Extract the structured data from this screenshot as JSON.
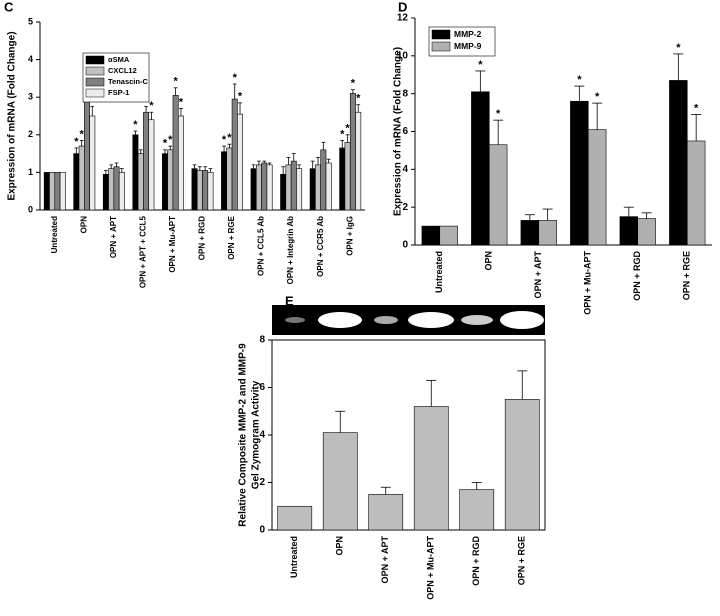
{
  "chart_data": [
    {
      "type": "bar",
      "panel_label": "C",
      "ylabel": "Expression of mRNA (Fold Change)",
      "categories": [
        "Untreated",
        "OPN",
        "OPN + APT",
        "OPN + APT + CCL5",
        "OPN + Mu-APT",
        "OPN + RGD",
        "OPN + RGE",
        "OPN + CCL5 Ab",
        "OPN + Integrin Ab",
        "OPN + CCR5 Ab",
        "OPN + IgG"
      ],
      "series": [
        {
          "name": "αSMA",
          "color": "#000000",
          "values": [
            1,
            1.5,
            0.95,
            2.0,
            1.5,
            1.1,
            1.55,
            1.1,
            0.95,
            1.1,
            1.65
          ],
          "errors": [
            0,
            0.15,
            0.1,
            0.1,
            0.1,
            0.1,
            0.15,
            0.1,
            0.2,
            0.2,
            0.2
          ]
        },
        {
          "name": "CXCL12",
          "color": "#c0c0c0",
          "values": [
            1,
            1.7,
            1.1,
            1.5,
            1.6,
            1.05,
            1.65,
            1.2,
            1.2,
            1.2,
            1.8
          ],
          "errors": [
            0,
            0.15,
            0.1,
            0.1,
            0.1,
            0.1,
            0.1,
            0.1,
            0.2,
            0.2,
            0.2
          ]
        },
        {
          "name": "Tenascin-C",
          "color": "#808080",
          "values": [
            1,
            3.0,
            1.15,
            2.6,
            3.05,
            1.05,
            2.95,
            1.25,
            1.3,
            1.6,
            3.1
          ],
          "errors": [
            0,
            0.3,
            0.1,
            0.15,
            0.2,
            0.1,
            0.4,
            0.05,
            0.2,
            0.2,
            0.1
          ]
        },
        {
          "name": "FSP-1",
          "color": "#ececec",
          "values": [
            1,
            2.5,
            1.0,
            2.4,
            2.5,
            1.0,
            2.55,
            1.2,
            1.1,
            1.25,
            2.6
          ],
          "errors": [
            0,
            0.25,
            0.1,
            0.2,
            0.2,
            0.1,
            0.3,
            0.05,
            0.1,
            0.1,
            0.2
          ]
        }
      ],
      "ylim": [
        0,
        5
      ],
      "yticks": [
        0,
        1,
        2,
        3,
        4,
        5
      ],
      "legend": "upper left",
      "annotations": [
        {
          "text": "*",
          "category": "OPN",
          "series": "αSMA"
        },
        {
          "text": "*",
          "category": "OPN",
          "series": "CXCL12"
        },
        {
          "text": "*",
          "category": "OPN",
          "series": "Tenascin-C"
        },
        {
          "text": "*",
          "category": "OPN",
          "series": "FSP-1"
        },
        {
          "text": "*",
          "category": "OPN + APT + CCL5",
          "series": "αSMA"
        },
        {
          "text": "*",
          "category": "OPN + APT + CCL5",
          "series": "Tenascin-C"
        },
        {
          "text": "*",
          "category": "OPN + APT + CCL5",
          "series": "FSP-1"
        },
        {
          "text": "*",
          "category": "OPN + Mu-APT",
          "series": "αSMA"
        },
        {
          "text": "*",
          "category": "OPN + Mu-APT",
          "series": "CXCL12"
        },
        {
          "text": "*",
          "category": "OPN + Mu-APT",
          "series": "Tenascin-C"
        },
        {
          "text": "*",
          "category": "OPN + Mu-APT",
          "series": "FSP-1"
        },
        {
          "text": "*",
          "category": "OPN + RGE",
          "series": "αSMA"
        },
        {
          "text": "*",
          "category": "OPN + RGE",
          "series": "CXCL12"
        },
        {
          "text": "*",
          "category": "OPN + RGE",
          "series": "Tenascin-C"
        },
        {
          "text": "*",
          "category": "OPN + RGE",
          "series": "FSP-1"
        },
        {
          "text": "*",
          "category": "OPN + IgG",
          "series": "αSMA"
        },
        {
          "text": "*",
          "category": "OPN + IgG",
          "series": "CXCL12"
        },
        {
          "text": "*",
          "category": "OPN + IgG",
          "series": "Tenascin-C"
        },
        {
          "text": "*",
          "category": "OPN + IgG",
          "series": "FSP-1"
        }
      ]
    },
    {
      "type": "bar",
      "panel_label": "D",
      "ylabel": "Expression of mRNA (Fold Change)",
      "categories": [
        "Untreated",
        "OPN",
        "OPN + APT",
        "OPN + Mu-APT",
        "OPN + RGD",
        "OPN + RGE"
      ],
      "series": [
        {
          "name": "MMP-2",
          "color": "#000000",
          "values": [
            1,
            8.1,
            1.3,
            7.6,
            1.5,
            8.7
          ],
          "errors": [
            0,
            1.1,
            0.3,
            0.8,
            0.5,
            1.4
          ]
        },
        {
          "name": "MMP-9",
          "color": "#b0b0b0",
          "values": [
            1,
            5.3,
            1.3,
            6.1,
            1.4,
            5.5
          ],
          "errors": [
            0,
            1.3,
            0.6,
            1.4,
            0.3,
            1.4
          ]
        }
      ],
      "ylim": [
        0,
        12
      ],
      "yticks": [
        0,
        2,
        4,
        6,
        8,
        10,
        12
      ],
      "legend": "upper left",
      "annotations": [
        {
          "text": "*",
          "category": "OPN",
          "series": "MMP-2"
        },
        {
          "text": "*",
          "category": "OPN",
          "series": "MMP-9"
        },
        {
          "text": "*",
          "category": "OPN + Mu-APT",
          "series": "MMP-2"
        },
        {
          "text": "*",
          "category": "OPN + Mu-APT",
          "series": "MMP-9"
        },
        {
          "text": "*",
          "category": "OPN + RGE",
          "series": "MMP-2"
        },
        {
          "text": "*",
          "category": "OPN + RGE",
          "series": "MMP-9"
        }
      ]
    },
    {
      "type": "bar",
      "panel_label": "E",
      "ylabel": [
        "Relative Composite MMP-2 and MMP-9",
        "Gel Zymogram Activity"
      ],
      "categories": [
        "Untreated",
        "OPN",
        "OPN + APT",
        "OPN + Mu-APT",
        "OPN + RGD",
        "OPN + RGE"
      ],
      "values": [
        1,
        4.1,
        1.5,
        5.2,
        1.7,
        5.5
      ],
      "errors": [
        0,
        0.9,
        0.3,
        1.1,
        0.3,
        1.2
      ],
      "color": "#bdbdbd",
      "ylim": [
        0,
        8
      ],
      "yticks": [
        0,
        2,
        4,
        6,
        8
      ]
    }
  ]
}
